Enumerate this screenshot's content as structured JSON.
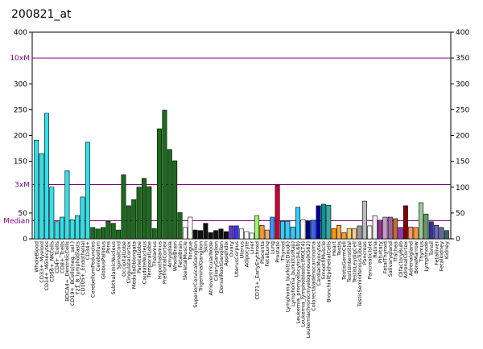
{
  "chart_data": {
    "type": "bar",
    "title": "200821_at",
    "categories": [
      "WholeBlood",
      "CD33+_Myeloid",
      "CD14+_Monocytes",
      "CD56+_NKCells",
      "CD4+_Tcells",
      "CD8+_Tcells",
      "BDCA4+_DentriticCells",
      "CD19+_BCells(neg._sel.)",
      "721_B_lymphoblasts",
      "CD105+_Endothelial",
      "CD34+",
      "CerebellumPeduncles",
      "Cerebellum",
      "GlobusPallidus",
      "Pons",
      "SubthalamicNucleus",
      "SpinalCord",
      "OccipitalLobe",
      "CingulateCortex",
      "MedullaOblongata",
      "ParietalLobe",
      "CaudateNucleus",
      "TemporalLobe",
      "Thalamus",
      "Hypothalamus",
      "PrefrontalCortex",
      "Amygdala",
      "WholeBrain",
      "FetalBrain",
      "SkeletalMuscle",
      "Tongue",
      "SuperiorCervicalGanglion",
      "TrigeminalGanglion",
      "Skin",
      "AtrioventricularNode",
      "CiliaryGanglion",
      "DorsalRootGanglion",
      "Appendix",
      "Ovary",
      "UterusCorpus",
      "Uterus",
      "Adipocyte",
      "Liver",
      "CD71+_EarlyErythroid",
      "Placenta",
      "FetalLung",
      "Lung",
      "Prostate",
      "Thyroid",
      "Lymphoma_burkitts(Daudi)",
      "Lymphoma_burkitts(Raji)",
      "Leukemia_promyelocytic(HL60)",
      "Leukemia_lymphoblastic(MOLT4)",
      "Leukemiachronicmyelogenous(K562)",
      "Colorectaladenocarcinoma",
      "CardiacMyocytes",
      "SmoothMuscle",
      "BronchialEpithelialCells",
      "Heart",
      "Testis",
      "TestisGermCell",
      "TestisInterstitial",
      "TestisLeydigCell",
      "TestisSeminiferousTubule",
      "Pancreas",
      "PancreaticIslet",
      "Retina",
      "Pituitary",
      "FetalThyroid",
      "Salivarygland",
      "Trachea",
      "OlfactoryBulb",
      "AdrenalCortex",
      "Adrenalgland",
      "BoneMarrow",
      "Thymus",
      "Lymphnode",
      "Tonsil",
      "Fetalliver",
      "Fetalkidney",
      "Kidney"
    ],
    "values": [
      191,
      165,
      243,
      100,
      33,
      42,
      132,
      37,
      45,
      81,
      187,
      22,
      19,
      22,
      34,
      30,
      17,
      124,
      64,
      76,
      100,
      117,
      101,
      20,
      213,
      249,
      173,
      151,
      51,
      22,
      42,
      17,
      16,
      30,
      12,
      16,
      19,
      14,
      25,
      25,
      19,
      14,
      11,
      45,
      26,
      17,
      42,
      104,
      34,
      34,
      23,
      61,
      37,
      34,
      36,
      64,
      67,
      65,
      20,
      26,
      12,
      20,
      20,
      25,
      73,
      25,
      45,
      36,
      42,
      42,
      39,
      22,
      64,
      23,
      22,
      70,
      48,
      33,
      26,
      22,
      16
    ],
    "colors": [
      "#33e0e8",
      "#33e0e8",
      "#33e0e8",
      "#33e0e8",
      "#33e0e8",
      "#33e0e8",
      "#33e0e8",
      "#33e0e8",
      "#33e0e8",
      "#33e0e8",
      "#33e0e8",
      "#1a6b1a",
      "#1a6b1a",
      "#1a6b1a",
      "#1a6b1a",
      "#1a6b1a",
      "#1a6b1a",
      "#1a6b1a",
      "#1a6b1a",
      "#1a6b1a",
      "#1a6b1a",
      "#1a6b1a",
      "#1a6b1a",
      "#1a6b1a",
      "#1a6b1a",
      "#1a6b1a",
      "#1a6b1a",
      "#1a6b1a",
      "#1a6b1a",
      "#ffffff",
      "#ffffff",
      "#111111",
      "#111111",
      "#111111",
      "#111111",
      "#111111",
      "#111111",
      "#111111",
      "#6633cc",
      "#3333ff",
      "#ffffff",
      "#ffffff",
      "#ffffff",
      "#99ff66",
      "#ff9933",
      "#ffaa66",
      "#3399ff",
      "#cc0033",
      "#33ccff",
      "#33ccff",
      "#33ccff",
      "#33ccff",
      "#ffffff",
      "#000080",
      "#3366ff",
      "#000099",
      "#009999",
      "#33aaaa",
      "#ff9900",
      "#ffaa33",
      "#ff9933",
      "#ffcc66",
      "#ffcc99",
      "#999999",
      "#bbbbbb",
      "#ffffff",
      "#eeeeee",
      "#993399",
      "#cc99cc",
      "#996699",
      "#cc6633",
      "#9933cc",
      "#880000",
      "#ff9966",
      "#ff9933",
      "#99cc99",
      "#669966",
      "#333399",
      "#6666cc",
      "#666699",
      "#336666"
    ],
    "ylim": [
      0,
      400
    ],
    "yticks": [
      0,
      50,
      150,
      200,
      250,
      300,
      400
    ],
    "y2lim": [
      0,
      400
    ],
    "y2ticks": [
      0,
      50,
      100,
      150,
      200,
      250,
      300,
      350,
      400
    ],
    "reference_lines": [
      {
        "label": "Median",
        "value": 35
      },
      {
        "label": "3xM",
        "value": 105
      },
      {
        "label": "10xM",
        "value": 350
      }
    ]
  }
}
